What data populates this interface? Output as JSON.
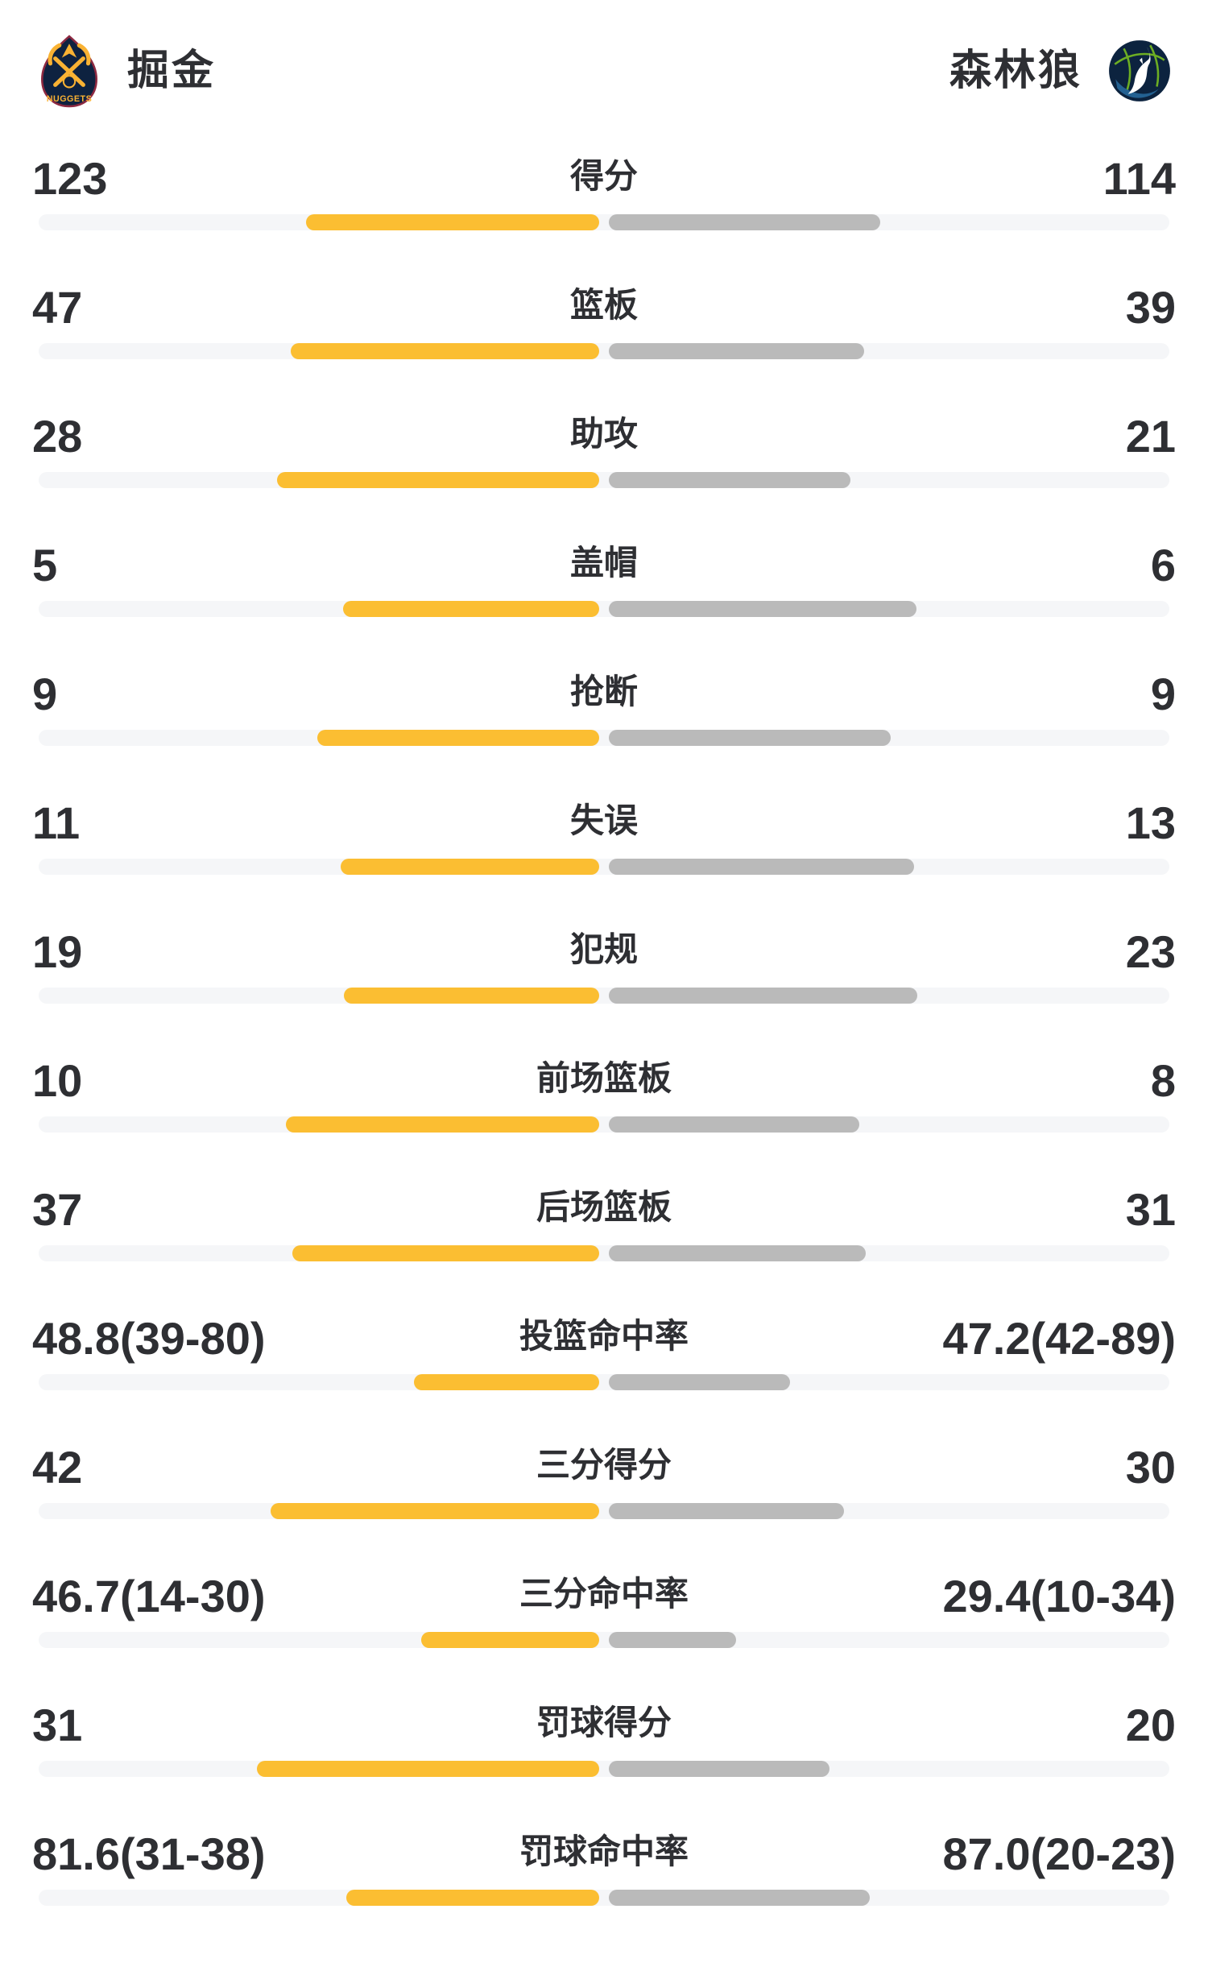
{
  "header": {
    "left_team": {
      "name": "掘金",
      "logo": "nuggets-logo",
      "logo_text": "NUGGETS"
    },
    "right_team": {
      "name": "森林狼",
      "logo": "timberwolves-logo"
    }
  },
  "colors": {
    "left_bar": "#fbbe32",
    "right_bar": "#bababa",
    "track": "#f5f6f8",
    "text": "#2e2f33",
    "nuggets_navy": "#0e2240",
    "nuggets_gold": "#f9b233",
    "nuggets_maroon": "#8d2941",
    "wolves_navy": "#0c233f",
    "wolves_blue": "#236192",
    "wolves_green": "#78be20"
  },
  "rows": [
    {
      "label": "得分",
      "left": "123",
      "right": "114",
      "left_bar": 364,
      "right_bar": 337
    },
    {
      "label": "篮板",
      "left": "47",
      "right": "39",
      "left_bar": 383,
      "right_bar": 317
    },
    {
      "label": "助攻",
      "left": "28",
      "right": "21",
      "left_bar": 400,
      "right_bar": 300
    },
    {
      "label": "盖帽",
      "left": "5",
      "right": "6",
      "left_bar": 318,
      "right_bar": 382
    },
    {
      "label": "抢断",
      "left": "9",
      "right": "9",
      "left_bar": 350,
      "right_bar": 350
    },
    {
      "label": "失误",
      "left": "11",
      "right": "13",
      "left_bar": 321,
      "right_bar": 379
    },
    {
      "label": "犯规",
      "left": "19",
      "right": "23",
      "left_bar": 317,
      "right_bar": 383
    },
    {
      "label": "前场篮板",
      "left": "10",
      "right": "8",
      "left_bar": 389,
      "right_bar": 311
    },
    {
      "label": "后场篮板",
      "left": "37",
      "right": "31",
      "left_bar": 381,
      "right_bar": 319
    },
    {
      "label": "投篮命中率",
      "left": "48.8(39-80)",
      "right": "47.2(42-89)",
      "left_bar": 230,
      "right_bar": 225
    },
    {
      "label": "三分得分",
      "left": "42",
      "right": "30",
      "left_bar": 408,
      "right_bar": 292
    },
    {
      "label": "三分命中率",
      "left": "46.7(14-30)",
      "right": "29.4(10-34)",
      "left_bar": 221,
      "right_bar": 158
    },
    {
      "label": "罚球得分",
      "left": "31",
      "right": "20",
      "left_bar": 425,
      "right_bar": 274
    },
    {
      "label": "罚球命中率",
      "left": "81.6(31-38)",
      "right": "87.0(20-23)",
      "left_bar": 314,
      "right_bar": 324
    }
  ],
  "chart_data": {
    "type": "bar",
    "orientation": "horizontal-paired",
    "categories": [
      "得分",
      "篮板",
      "助攻",
      "盖帽",
      "抢断",
      "失误",
      "犯规",
      "前场篮板",
      "后场篮板",
      "投篮命中率",
      "三分得分",
      "三分命中率",
      "罚球得分",
      "罚球命中率"
    ],
    "series": [
      {
        "name": "掘金",
        "values": [
          "123",
          "47",
          "28",
          "5",
          "9",
          "11",
          "19",
          "10",
          "37",
          "48.8(39-80)",
          "42",
          "46.7(14-30)",
          "31",
          "81.6(31-38)"
        ]
      },
      {
        "name": "森林狼",
        "values": [
          "114",
          "39",
          "21",
          "6",
          "9",
          "13",
          "23",
          "8",
          "31",
          "47.2(42-89)",
          "30",
          "29.4(10-34)",
          "20",
          "87.0(20-23)"
        ]
      }
    ],
    "legend_position": "top",
    "grid": false,
    "title": ""
  }
}
